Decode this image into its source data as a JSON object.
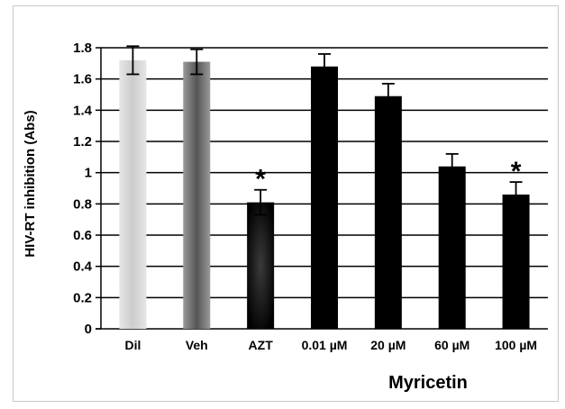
{
  "chart_data": {
    "type": "bar",
    "ylabel": "HIV-RT inhibition  (Abs)",
    "group_label": "Myricetin",
    "ylim": [
      0,
      1.8
    ],
    "yticks": [
      0,
      0.2,
      0.4,
      0.6,
      0.8,
      1,
      1.2,
      1.4,
      1.6,
      1.8
    ],
    "ytick_labels": [
      "0",
      "0.2",
      "0.4",
      "0.6",
      "0.8",
      "1",
      "1.2",
      "1.4",
      "1.6",
      "1.8"
    ],
    "grid": true,
    "categories": [
      "Dil",
      "Veh",
      "AZT",
      "0.01 µM",
      "20  µM",
      "60  µM",
      "100  µM"
    ],
    "values": [
      1.72,
      1.71,
      0.81,
      1.68,
      1.49,
      1.04,
      0.86
    ],
    "errors": [
      0.09,
      0.08,
      0.08,
      0.08,
      0.08,
      0.08,
      0.08
    ],
    "significant": [
      false,
      false,
      true,
      false,
      false,
      false,
      true
    ],
    "significance_marker": "*",
    "bar_styles": [
      "light-gray",
      "gray",
      "black-gradient",
      "black",
      "black",
      "black",
      "black"
    ],
    "colors": {
      "light": "#d4d4d4",
      "gray": "#6a6a6a",
      "black": "#000000"
    }
  }
}
